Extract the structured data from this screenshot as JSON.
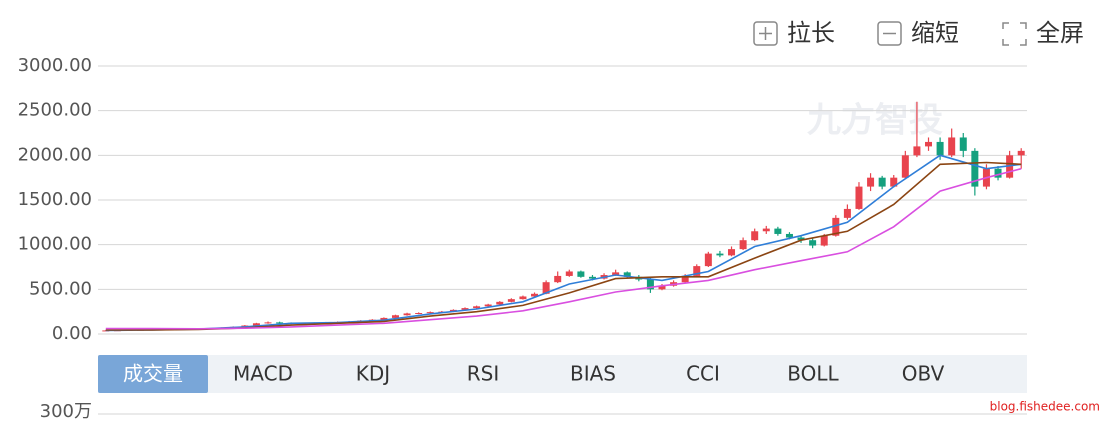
{
  "toolbar": [
    "拉长",
    "缩短",
    "全屏"
  ],
  "chart_data": {
    "type": "candlestick",
    "watermark": "九方智投",
    "ylim": [
      0,
      3000
    ],
    "yticks": [
      {
        "value": 0,
        "label": "0.00"
      },
      {
        "value": 500,
        "label": "500.00"
      },
      {
        "value": 1000,
        "label": "1000.00"
      },
      {
        "value": 1500,
        "label": "1500.00"
      },
      {
        "value": 2000,
        "label": "2000.00"
      },
      {
        "value": 2500,
        "label": "2500.00"
      },
      {
        "value": 3000,
        "label": "3000.00"
      }
    ],
    "grid": true,
    "up_color": "#e8434d",
    "down_color": "#14a07e",
    "candles": [
      [
        38,
        40,
        35,
        44
      ],
      [
        40,
        42,
        38,
        46
      ],
      [
        42,
        45,
        40,
        48
      ],
      [
        45,
        48,
        43,
        51
      ],
      [
        48,
        50,
        46,
        53
      ],
      [
        50,
        52,
        48,
        56
      ],
      [
        52,
        55,
        50,
        58
      ],
      [
        55,
        58,
        53,
        62
      ],
      [
        58,
        60,
        55,
        64
      ],
      [
        60,
        62,
        57,
        66
      ],
      [
        62,
        70,
        60,
        74
      ],
      [
        70,
        80,
        68,
        85
      ],
      [
        80,
        95,
        78,
        100
      ],
      [
        95,
        120,
        92,
        125
      ],
      [
        120,
        130,
        115,
        140
      ],
      [
        130,
        125,
        118,
        138
      ],
      [
        125,
        115,
        110,
        130
      ],
      [
        115,
        120,
        112,
        125
      ],
      [
        120,
        125,
        116,
        130
      ],
      [
        125,
        130,
        120,
        135
      ],
      [
        130,
        135,
        126,
        140
      ],
      [
        135,
        140,
        130,
        146
      ],
      [
        140,
        150,
        136,
        155
      ],
      [
        150,
        160,
        146,
        166
      ],
      [
        160,
        180,
        155,
        186
      ],
      [
        180,
        210,
        176,
        216
      ],
      [
        210,
        230,
        205,
        238
      ],
      [
        230,
        235,
        222,
        242
      ],
      [
        235,
        245,
        230,
        252
      ],
      [
        245,
        250,
        238,
        258
      ],
      [
        250,
        270,
        245,
        276
      ],
      [
        270,
        290,
        265,
        298
      ],
      [
        290,
        310,
        285,
        318
      ],
      [
        310,
        330,
        305,
        338
      ],
      [
        330,
        360,
        325,
        368
      ],
      [
        360,
        390,
        355,
        400
      ],
      [
        390,
        420,
        385,
        430
      ],
      [
        420,
        450,
        415,
        465
      ],
      [
        450,
        580,
        445,
        600
      ],
      [
        580,
        650,
        570,
        700
      ],
      [
        650,
        700,
        640,
        720
      ],
      [
        700,
        640,
        630,
        710
      ],
      [
        640,
        620,
        600,
        660
      ],
      [
        620,
        660,
        610,
        680
      ],
      [
        660,
        690,
        650,
        720
      ],
      [
        690,
        640,
        630,
        700
      ],
      [
        640,
        610,
        590,
        660
      ],
      [
        610,
        500,
        460,
        640
      ],
      [
        500,
        540,
        490,
        560
      ],
      [
        540,
        580,
        530,
        600
      ],
      [
        580,
        650,
        570,
        670
      ],
      [
        650,
        760,
        640,
        780
      ],
      [
        760,
        900,
        750,
        920
      ],
      [
        900,
        880,
        860,
        930
      ],
      [
        880,
        950,
        870,
        980
      ],
      [
        950,
        1050,
        940,
        1080
      ],
      [
        1050,
        1150,
        1040,
        1180
      ],
      [
        1150,
        1180,
        1120,
        1210
      ],
      [
        1180,
        1120,
        1100,
        1200
      ],
      [
        1120,
        1080,
        1060,
        1140
      ],
      [
        1080,
        1050,
        1020,
        1100
      ],
      [
        1050,
        990,
        960,
        1070
      ],
      [
        990,
        1100,
        980,
        1120
      ],
      [
        1100,
        1300,
        1090,
        1330
      ],
      [
        1300,
        1400,
        1280,
        1450
      ],
      [
        1400,
        1650,
        1390,
        1700
      ],
      [
        1650,
        1750,
        1600,
        1800
      ],
      [
        1750,
        1650,
        1620,
        1770
      ],
      [
        1650,
        1750,
        1640,
        1780
      ],
      [
        1750,
        2000,
        1740,
        2050
      ],
      [
        2000,
        2100,
        1980,
        2600
      ],
      [
        2100,
        2150,
        2050,
        2200
      ],
      [
        2150,
        2000,
        1950,
        2200
      ],
      [
        2000,
        2200,
        1980,
        2300
      ],
      [
        2200,
        2050,
        1980,
        2250
      ],
      [
        2050,
        1650,
        1550,
        2080
      ],
      [
        1650,
        1850,
        1620,
        1900
      ],
      [
        1850,
        1750,
        1720,
        1880
      ],
      [
        1750,
        2000,
        1740,
        2050
      ],
      [
        2000,
        2050,
        1850,
        2080
      ]
    ],
    "ma_x": [
      0,
      4,
      8,
      12,
      16,
      20,
      24,
      28,
      32,
      36,
      40,
      44,
      48,
      52,
      56,
      60,
      64,
      68,
      72,
      76,
      79
    ],
    "ma_series": [
      {
        "color": "#2f7ed8",
        "values": [
          40,
          45,
          55,
          80,
          120,
          128,
          155,
          225,
          280,
          360,
          560,
          660,
          600,
          700,
          980,
          1100,
          1250,
          1650,
          2000,
          1850,
          1900
        ]
      },
      {
        "color": "#8b4513",
        "values": [
          45,
          45,
          52,
          68,
          100,
          120,
          140,
          200,
          250,
          320,
          460,
          620,
          640,
          640,
          850,
          1050,
          1150,
          1450,
          1900,
          1920,
          1900
        ]
      },
      {
        "color": "#d94fe0",
        "values": [
          60,
          60,
          58,
          65,
          80,
          100,
          120,
          160,
          200,
          260,
          360,
          470,
          540,
          600,
          720,
          820,
          920,
          1200,
          1600,
          1750,
          1850
        ]
      }
    ]
  },
  "tabs": {
    "items": [
      "成交量",
      "MACD",
      "KDJ",
      "RSI",
      "BIAS",
      "CCI",
      "BOLL",
      "OBV"
    ],
    "active": 0
  },
  "volume_axis": {
    "yticks": [
      {
        "value": 3000000,
        "label": "300万"
      }
    ]
  },
  "source": "blog.fishedee.com"
}
